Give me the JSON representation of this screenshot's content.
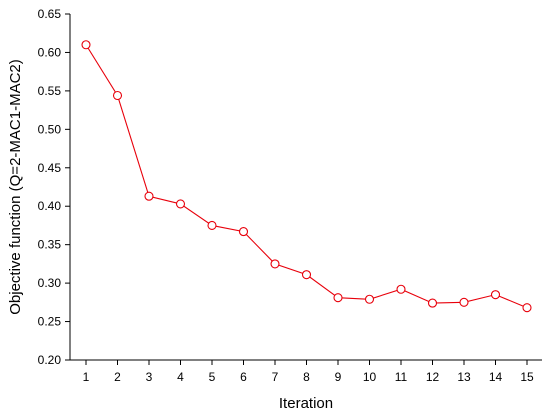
{
  "chart_data": {
    "type": "line",
    "title": "",
    "xlabel": "Iteration",
    "ylabel": "Objective function (Q=2-MAC1-MAC2)",
    "x": [
      1,
      2,
      3,
      4,
      5,
      6,
      7,
      8,
      9,
      10,
      11,
      12,
      13,
      14,
      15
    ],
    "xticks": [
      "1",
      "2",
      "3",
      "4",
      "5",
      "6",
      "7",
      "8",
      "9",
      "10",
      "11",
      "12",
      "13",
      "14",
      "15"
    ],
    "ylim": [
      0.2,
      0.65
    ],
    "yticks": [
      "0.20",
      "0.25",
      "0.30",
      "0.35",
      "0.40",
      "0.45",
      "0.50",
      "0.55",
      "0.60",
      "0.65"
    ],
    "grid": false,
    "legend": "none",
    "series": [
      {
        "values": [
          0.61,
          0.544,
          0.413,
          0.403,
          0.375,
          0.367,
          0.325,
          0.311,
          0.281,
          0.279,
          0.292,
          0.274,
          0.275,
          0.285,
          0.268
        ],
        "color": "#e8000b",
        "marker": "open-circle"
      }
    ]
  }
}
